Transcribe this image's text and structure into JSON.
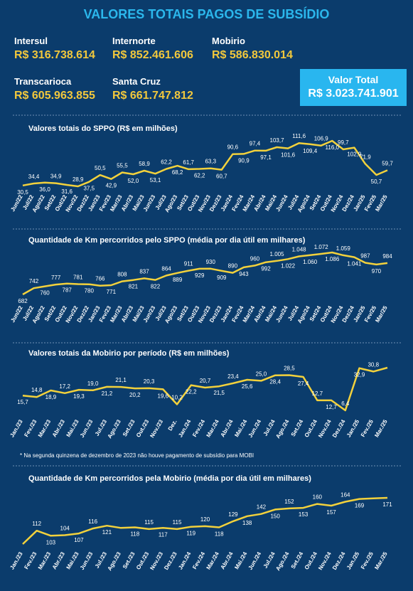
{
  "header": {
    "title": "VALORES TOTAIS PAGOS DE SUBSÍDIO",
    "operators": [
      {
        "name": "Intersul",
        "value": "R$ 316.738.614"
      },
      {
        "name": "Internorte",
        "value": "R$ 852.461.606"
      },
      {
        "name": "Mobirio",
        "value": "R$ 586.830.014"
      },
      {
        "name": "Transcarioca",
        "value": "R$ 605.963.855"
      },
      {
        "name": "Santa Cruz",
        "value": "R$ 661.747.812"
      }
    ],
    "total": {
      "name": "Valor Total",
      "value": "R$ 3.023.741.901"
    }
  },
  "note": "* Na segunda quinzena de dezembro de 2023 não houve pagamento de subsídio para MOBI",
  "chart_data": [
    {
      "type": "line",
      "title": "Valores totais do SPPO (R$ em milhões)",
      "color": "#f2d13c",
      "categories": [
        "Jun/22",
        "Jul/22",
        "Ago/22",
        "Set/22",
        "Out/22",
        "Nov/22",
        "Dez/22",
        "Jan/23",
        "Fev/23",
        "Mar/23",
        "Abr/23",
        "Mai/23",
        "Jun/23",
        "Jul/23",
        "Ago/23",
        "Set/23",
        "Out/23",
        "Nov/23",
        "Dez/23",
        "Jan/24",
        "Fev/24",
        "Mar/24",
        "Abr/24",
        "Mai/24",
        "Jun/24",
        "Jul/24",
        "Ago/24",
        "Set/24",
        "Out/24",
        "Nov/24",
        "Dez/24",
        "Jan/25",
        "Fev/25",
        "Mar/25"
      ],
      "values": [
        30.5,
        34.4,
        36.0,
        34.9,
        31.6,
        28.9,
        37.5,
        50.5,
        42.9,
        55.5,
        52.0,
        58.9,
        53.1,
        62.2,
        68.2,
        61.7,
        62.2,
        63.3,
        60.7,
        90.6,
        90.9,
        97.4,
        97.1,
        103.7,
        101.6,
        111.6,
        109.4,
        106.9,
        116.0,
        99.7,
        102.9,
        71.9,
        50.7,
        59.7
      ],
      "value_labels": [
        "30,5",
        "34,4",
        "36,0",
        "34,9",
        "31,6",
        "28,9",
        "37,5",
        "50,5",
        "42,9",
        "55,5",
        "52,0",
        "58,9",
        "53,1",
        "62,2",
        "68,2",
        "61,7",
        "62,2",
        "63,3",
        "60,7",
        "90,6",
        "90,9",
        "97,4",
        "97,1",
        "103,7",
        "101,6",
        "111,6",
        "109,4",
        "106,9",
        "116,0",
        "99,7",
        "102,9",
        "71,9",
        "50,7",
        "59,7"
      ]
    },
    {
      "type": "line",
      "title": "Quantidade de Km percorridos pelo SPPO (média por dia útil em milhares)",
      "color": "#f2d13c",
      "categories": [
        "Jun/22",
        "Jul/22",
        "Ago/22",
        "Set/22",
        "Out/22",
        "Nov/22",
        "Dez/22",
        "Jan/23",
        "Fev/23",
        "Mar/23",
        "Abr/23",
        "Mai/23",
        "Jun/23",
        "Jul/23",
        "Ago/23",
        "Set/23",
        "Out/23",
        "Nov/23",
        "Dez/23",
        "Jan/24",
        "Fev/24",
        "Mar/24",
        "Abr/24",
        "Mai/24",
        "Jun/24",
        "Jul/24",
        "Ago/24",
        "Set/24",
        "Out/24",
        "Nov/24",
        "Dez/24",
        "Jan/25",
        "Fev/25",
        "Mar/25"
      ],
      "values": [
        682,
        742,
        760,
        777,
        787,
        781,
        780,
        766,
        771,
        808,
        821,
        837,
        822,
        864,
        889,
        911,
        929,
        930,
        909,
        890,
        943,
        960,
        992,
        1005,
        1022,
        1048,
        1060,
        1072,
        1086,
        1059,
        1041,
        987,
        970,
        984
      ],
      "value_labels": [
        "682",
        "742",
        "760",
        "777",
        "787",
        "781",
        "780",
        "766",
        "771",
        "808",
        "821",
        "837",
        "822",
        "864",
        "889",
        "911",
        "929",
        "930",
        "909",
        "890",
        "943",
        "960",
        "992",
        "1.005",
        "1.022",
        "1.048",
        "1.060",
        "1.072",
        "1.086",
        "1.059",
        "1.041",
        "987",
        "970",
        "984"
      ]
    },
    {
      "type": "line",
      "title": "Valores totais da Mobirio por período (R$ em milhões)",
      "color": "#f2d13c",
      "categories": [
        "Jan./23",
        "Fev./23",
        "Mar./23",
        "Abr./23",
        "Mai./23",
        "Jun./23",
        "Jul./23",
        "Ago./23",
        "Set./23",
        "Out./23",
        "Nov./23",
        "Dez.",
        "Jan./24",
        "Fev./24",
        "Mar./24",
        "Abr./24",
        "Mai./24",
        "Jun./24",
        "Jul./24",
        "Ago./24",
        "Set./24",
        "Out./24",
        "Nov./24",
        "Dez./24",
        "Jan./25",
        "Fev./25",
        "Mar./25"
      ],
      "values": [
        15.7,
        14.8,
        18.9,
        17.2,
        19.3,
        19.0,
        21.2,
        21.1,
        20.2,
        20.3,
        19.6,
        10.2,
        22.2,
        20.7,
        21.5,
        23.4,
        25.6,
        25.0,
        28.4,
        28.5,
        27.4,
        12.7,
        12.7,
        6.4,
        32.9,
        30.8,
        33.2
      ],
      "value_labels": [
        "15,7",
        "14,8",
        "18,9",
        "17,2",
        "19,3",
        "19,0",
        "21,2",
        "21,1",
        "20,2",
        "20,3",
        "19,6",
        "10,2",
        "22,2",
        "20,7",
        "21,5",
        "23,4",
        "25,6",
        "25,0",
        "28,4",
        "28,5",
        "27,4",
        "12,7",
        "12,7",
        "6,4",
        "32,9",
        "30,8",
        null
      ]
    },
    {
      "type": "line",
      "title": "Quantidade de Km percorridos pela Mobirio (média por dia útil em milhares)",
      "color": "#f2d13c",
      "categories": [
        "Jan./23",
        "Fev./23",
        "Mar./23",
        "Abr./23",
        "Mai./23",
        "Jun./23",
        "Jul./23",
        "Ago./23",
        "Set./23",
        "Out./23",
        "Nov./23",
        "Dez./23",
        "Jan./24",
        "Fev./24",
        "Mar./24",
        "Abr./24",
        "Mai./24",
        "Jun./24",
        "Jul./24",
        "Ago./24",
        "Set./24",
        "Out./24",
        "Nov./24",
        "Dez./24",
        "Jan./25",
        "Fev./25",
        "Mar./25"
      ],
      "values": [
        88,
        112,
        103,
        104,
        107,
        116,
        121,
        117,
        118,
        115,
        117,
        115,
        119,
        120,
        118,
        129,
        138,
        142,
        150,
        152,
        153,
        160,
        157,
        164,
        169,
        170,
        171
      ],
      "value_labels": [
        null,
        "112",
        "103",
        "104",
        "107",
        "116",
        "121",
        null,
        "118",
        "115",
        "117",
        "115",
        "119",
        "120",
        "118",
        "129",
        "138",
        "142",
        "150",
        "152",
        "153",
        "160",
        "157",
        "164",
        "169",
        null,
        "171"
      ]
    }
  ]
}
